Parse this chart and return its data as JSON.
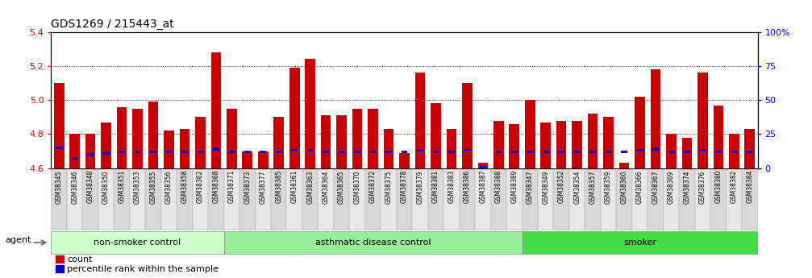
{
  "title": "GDS1269 / 215443_at",
  "samples": [
    "GSM38345",
    "GSM38346",
    "GSM38348",
    "GSM38350",
    "GSM38351",
    "GSM38353",
    "GSM38355",
    "GSM38356",
    "GSM38358",
    "GSM38362",
    "GSM38368",
    "GSM38371",
    "GSM38373",
    "GSM38377",
    "GSM38385",
    "GSM38361",
    "GSM38363",
    "GSM38364",
    "GSM38365",
    "GSM38370",
    "GSM38372",
    "GSM38375",
    "GSM38378",
    "GSM38379",
    "GSM38381",
    "GSM38383",
    "GSM38386",
    "GSM38387",
    "GSM38388",
    "GSM38389",
    "GSM38347",
    "GSM38349",
    "GSM38352",
    "GSM38354",
    "GSM38357",
    "GSM38359",
    "GSM38360",
    "GSM38366",
    "GSM38367",
    "GSM38369",
    "GSM38374",
    "GSM38376",
    "GSM38380",
    "GSM38382",
    "GSM38384"
  ],
  "count_values": [
    5.1,
    4.8,
    4.8,
    4.87,
    4.96,
    4.95,
    4.99,
    4.82,
    4.83,
    4.9,
    5.28,
    4.95,
    4.7,
    4.7,
    4.9,
    5.19,
    5.24,
    4.91,
    4.91,
    4.95,
    4.95,
    4.83,
    4.69,
    5.16,
    4.98,
    4.83,
    5.1,
    4.63,
    4.88,
    4.86,
    5.0,
    4.87,
    4.88,
    4.88,
    4.92,
    4.9,
    4.63,
    5.02,
    5.18,
    4.8,
    4.78,
    5.16,
    4.97,
    4.8,
    4.83
  ],
  "percentile_values": [
    15,
    7,
    10,
    11,
    12,
    12,
    12,
    12,
    12,
    12,
    14,
    12,
    12,
    12,
    12,
    13,
    13,
    12,
    12,
    12,
    12,
    12,
    12,
    13,
    12,
    12,
    13,
    1,
    12,
    12,
    12,
    12,
    12,
    12,
    12,
    12,
    12,
    13,
    14,
    12,
    12,
    13,
    12,
    12,
    12
  ],
  "groups": [
    {
      "name": "non-smoker control",
      "start": 0,
      "end": 11,
      "color": "#ccffcc"
    },
    {
      "name": "asthmatic disease control",
      "start": 11,
      "end": 30,
      "color": "#99ee99"
    },
    {
      "name": "smoker",
      "start": 30,
      "end": 45,
      "color": "#44dd44"
    }
  ],
  "ylim": [
    4.6,
    5.4
  ],
  "y_left_ticks": [
    4.6,
    4.8,
    5.0,
    5.2,
    5.4
  ],
  "y_right_ticks": [
    0,
    25,
    50,
    75,
    100
  ],
  "y_right_labels": [
    "0",
    "25",
    "50",
    "75",
    "100%"
  ],
  "bar_color": "#cc0000",
  "percentile_color": "#0000cc",
  "baseline": 4.6,
  "bg_color": "#ffffff",
  "tick_bg_color": "#d8d8d8"
}
